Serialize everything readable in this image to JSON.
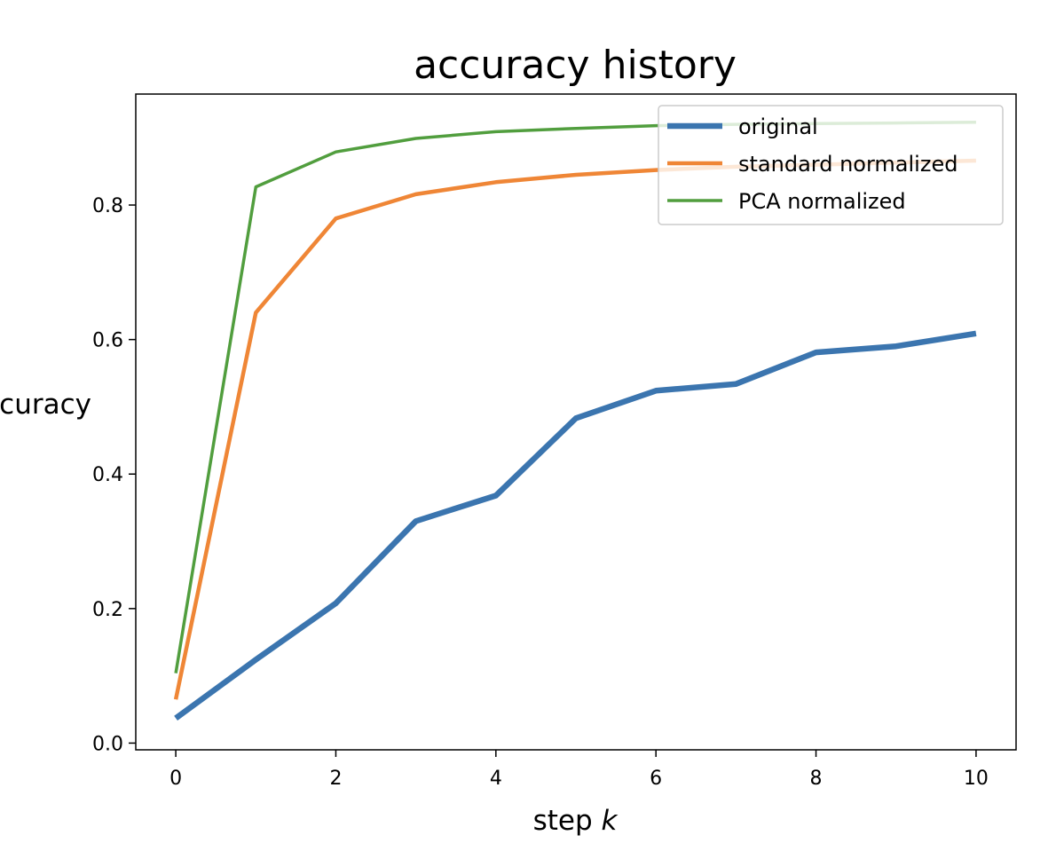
{
  "chart_data": {
    "type": "line",
    "title": "accuracy history",
    "xlabel_prefix": "step ",
    "xlabel_var": "k",
    "ylabel": "accuracy",
    "x": [
      0,
      1,
      2,
      3,
      4,
      5,
      6,
      7,
      8,
      9,
      10
    ],
    "xlim": [
      -0.5,
      10.5
    ],
    "ylim": [
      -0.01,
      0.965
    ],
    "xticks": [
      0,
      2,
      4,
      6,
      8,
      10
    ],
    "xtick_labels": [
      "0",
      "2",
      "4",
      "6",
      "8",
      "10"
    ],
    "yticks": [
      0.0,
      0.2,
      0.4,
      0.6,
      0.8
    ],
    "ytick_labels": [
      "0.0",
      "0.2",
      "0.4",
      "0.6",
      "0.8"
    ],
    "grid": false,
    "legend_position": "upper right",
    "series": [
      {
        "name": "original",
        "color": "#3b75af",
        "values": [
          0.037,
          0.124,
          0.208,
          0.33,
          0.368,
          0.483,
          0.524,
          0.534,
          0.581,
          0.59,
          0.609
        ]
      },
      {
        "name": "standard normalized",
        "color": "#ef8636",
        "values": [
          0.065,
          0.64,
          0.78,
          0.816,
          0.834,
          0.845,
          0.852,
          0.857,
          0.86,
          0.863,
          0.866
        ]
      },
      {
        "name": "PCA normalized",
        "color": "#519e3e",
        "values": [
          0.104,
          0.827,
          0.879,
          0.899,
          0.909,
          0.914,
          0.918,
          0.92,
          0.921,
          0.922,
          0.923
        ]
      }
    ]
  }
}
